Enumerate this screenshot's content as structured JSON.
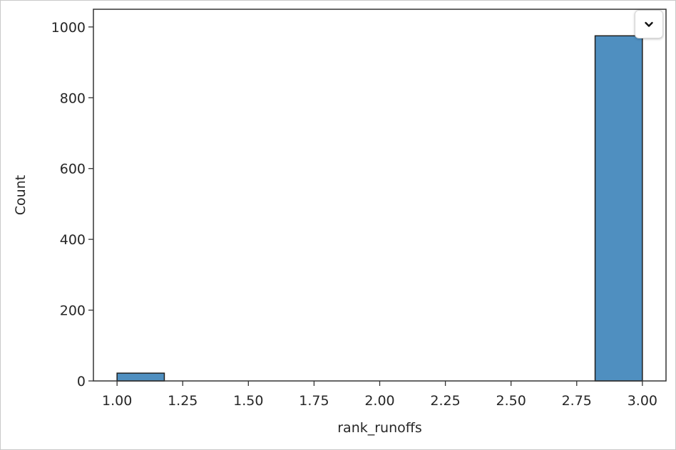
{
  "chart_data": {
    "type": "bar",
    "title": "",
    "xlabel": "rank_runoffs",
    "ylabel": "Count",
    "xlim": [
      0.91,
      3.09
    ],
    "ylim": [
      0,
      1050
    ],
    "x_ticks": [
      1.0,
      1.25,
      1.5,
      1.75,
      2.0,
      2.25,
      2.5,
      2.75,
      3.0
    ],
    "x_tick_labels": [
      "1.00",
      "1.25",
      "1.50",
      "1.75",
      "2.00",
      "2.25",
      "2.50",
      "2.75",
      "3.00"
    ],
    "y_ticks": [
      0,
      200,
      400,
      600,
      800,
      1000
    ],
    "y_tick_labels": [
      "0",
      "200",
      "400",
      "600",
      "800",
      "1000"
    ],
    "bins": [
      {
        "x0": 1.0,
        "x1": 1.18,
        "count": 22
      },
      {
        "x0": 2.82,
        "x1": 3.0,
        "count": 975
      }
    ],
    "bar_color": "#4f8fc0",
    "bar_edge_color": "#1f1f1f",
    "grid": false
  },
  "ui": {
    "menu_icon": "chevron-down-icon"
  }
}
